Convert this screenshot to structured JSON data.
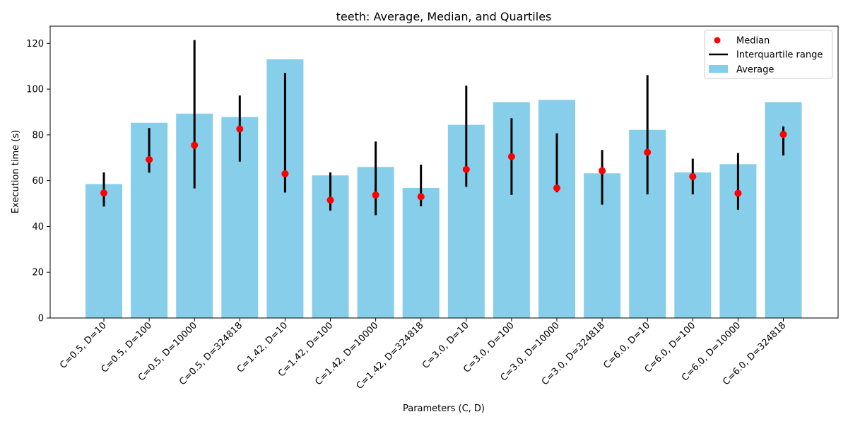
{
  "chart_data": {
    "type": "bar",
    "title": "teeth: Average, Median, and Quartiles",
    "xlabel": "Parameters (C, D)",
    "ylabel": "Execution time (s)",
    "ylim": [
      0,
      127.5
    ],
    "yticks": [
      0,
      20,
      40,
      60,
      80,
      100,
      120
    ],
    "grid": false,
    "legend_position": "top-right",
    "categories": [
      "C=0.5, D=10",
      "C=0.5, D=100",
      "C=0.5, D=10000",
      "C=0.5, D=324818",
      "C=1.42, D=10",
      "C=1.42, D=100",
      "C=1.42, D=10000",
      "C=1.42, D=324818",
      "C=3.0, D=10",
      "C=3.0, D=100",
      "C=3.0, D=10000",
      "C=3.0, D=324818",
      "C=6.0, D=10",
      "C=6.0, D=100",
      "C=6.0, D=10000",
      "C=6.0, D=324818"
    ],
    "series": [
      {
        "name": "Average",
        "kind": "bar",
        "color": "#87ceeb",
        "values": [
          58.5,
          85.3,
          89.3,
          87.8,
          113.0,
          62.3,
          66.0,
          56.8,
          84.4,
          94.3,
          95.3,
          63.2,
          82.2,
          63.6,
          67.2,
          94.3
        ]
      },
      {
        "name": "Median",
        "kind": "point",
        "color": "#ff0000",
        "values": [
          54.6,
          69.2,
          75.5,
          82.6,
          63.0,
          51.5,
          53.7,
          53.0,
          64.9,
          70.5,
          56.8,
          64.3,
          72.4,
          61.8,
          54.5,
          80.2
        ]
      },
      {
        "name": "Interquartile range",
        "kind": "range",
        "color": "#000000",
        "low": [
          48.7,
          63.5,
          56.6,
          68.3,
          54.8,
          46.9,
          44.9,
          48.8,
          57.3,
          53.8,
          54.9,
          49.5,
          54.0,
          54.0,
          47.3,
          71.0
        ],
        "high": [
          63.6,
          83.0,
          121.4,
          97.2,
          107.1,
          63.6,
          77.1,
          67.0,
          101.5,
          87.3,
          80.7,
          73.4,
          106.1,
          69.6,
          72.1,
          83.7
        ]
      }
    ],
    "legend": [
      "Median",
      "Interquartile range",
      "Average"
    ]
  }
}
